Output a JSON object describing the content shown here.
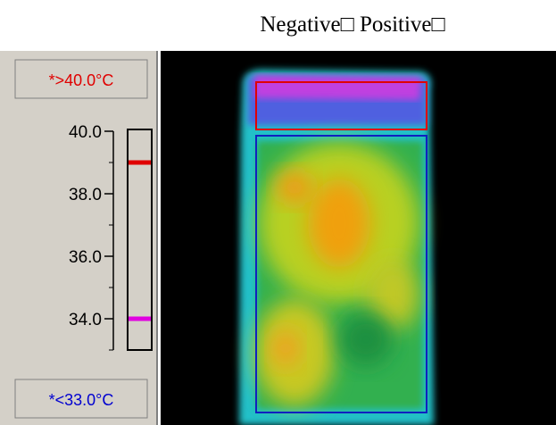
{
  "title": "Negative□ Positive□",
  "upper_limit": {
    "label": "*>40.0°C",
    "color": "#e00000"
  },
  "lower_limit": {
    "label": "*<33.0°C",
    "color": "#0000d0"
  },
  "scale": {
    "range": [
      33,
      40
    ],
    "ticks": [
      {
        "value": 40,
        "label": "40.0"
      },
      {
        "value": 38,
        "label": "38.0"
      },
      {
        "value": 36,
        "label": "36.0"
      },
      {
        "value": 34,
        "label": "34.0"
      }
    ],
    "minor_ticks": [
      39,
      37,
      35,
      33
    ],
    "markers": [
      {
        "value": 39,
        "color": "#e00000"
      },
      {
        "value": 34,
        "color": "#e000e0"
      }
    ]
  }
}
